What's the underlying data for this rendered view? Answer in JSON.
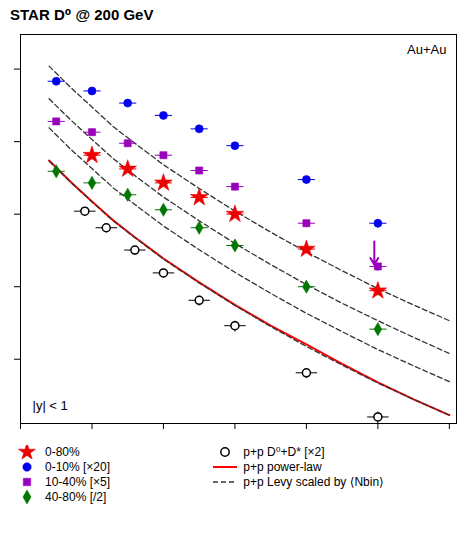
{
  "chart_data": {
    "type": "scatter",
    "title": "STAR D⁰ @ 200 GeV",
    "log": "y",
    "grid": false,
    "tick_labels": false,
    "legend": "bottom",
    "xlim": [
      0,
      6.1
    ],
    "xticks": [
      0,
      1,
      2,
      3,
      4,
      5,
      6
    ],
    "ylim": [
      0.0013,
      300
    ],
    "yticks": [
      0.01,
      0.1,
      1,
      10,
      100
    ],
    "annotations": [
      {
        "text": "Au+Au"
      },
      {
        "text": "|y| < 1"
      },
      {
        "type": "arrow",
        "x": 4.95,
        "y_start": 0.42,
        "y_end": 0.2,
        "color": "#9900bb"
      }
    ],
    "series": [
      {
        "name": "0-80%",
        "type": "scatter",
        "color": "#ee0000",
        "marker": "star",
        "x": [
          1.0,
          1.5,
          2.0,
          2.5,
          3.0,
          4.0,
          5.0
        ],
        "values": [
          6.5,
          4.2,
          2.7,
          1.7,
          1.0,
          0.33,
          0.088
        ],
        "yerr": [
          0.7,
          0.4,
          0.25,
          0.18,
          0.1,
          0.04,
          0.012
        ],
        "xerr": [
          0.12,
          0.12,
          0.12,
          0.12,
          0.12,
          0.12,
          0.12
        ]
      },
      {
        "name": "0-10% [×20]",
        "type": "scatter",
        "color": "#0000ee",
        "marker": "circle",
        "x": [
          0.5,
          1.0,
          1.5,
          2.0,
          2.5,
          3.0,
          4.0,
          5.0
        ],
        "values": [
          68,
          50,
          34,
          23,
          15,
          8.8,
          3.0,
          0.75
        ],
        "yerr": [
          8,
          5,
          3,
          2.5,
          1.5,
          1.0,
          0.35,
          0.1
        ],
        "xerr": [
          0.12,
          0.12,
          0.12,
          0.12,
          0.12,
          0.12,
          0.12,
          0.12
        ]
      },
      {
        "name": "10-40% [×5]",
        "type": "scatter",
        "color": "#9900bb",
        "marker": "square",
        "x": [
          0.5,
          1.0,
          1.5,
          2.0,
          2.5,
          3.0,
          4.0,
          5.0
        ],
        "values": [
          19,
          13.5,
          9.5,
          6.5,
          4.0,
          2.4,
          0.75,
          0.19
        ],
        "yerr": [
          2,
          1.5,
          1.0,
          0.7,
          0.45,
          0.28,
          0.09,
          0.025
        ],
        "xerr": [
          0.12,
          0.12,
          0.12,
          0.12,
          0.12,
          0.12,
          0.12,
          0.12
        ]
      },
      {
        "name": "40-80% [/2]",
        "type": "scatter",
        "color": "#007700",
        "marker": "diamond",
        "x": [
          0.5,
          1.0,
          1.5,
          2.0,
          2.5,
          3.0,
          4.0,
          5.0
        ],
        "values": [
          3.9,
          2.7,
          1.85,
          1.15,
          0.65,
          0.37,
          0.1,
          0.026
        ],
        "yerr": [
          0.5,
          0.3,
          0.2,
          0.13,
          0.08,
          0.04,
          0.012,
          0.004
        ],
        "xerr": [
          0.12,
          0.12,
          0.12,
          0.12,
          0.12,
          0.12,
          0.12,
          0.12
        ]
      },
      {
        "name": "p+p D⁰+D* [×2]",
        "type": "scatter",
        "color": "#000000",
        "marker": "open circle",
        "x": [
          0.9,
          1.2,
          1.6,
          2.0,
          2.5,
          3.0,
          4.0,
          5.0
        ],
        "values": [
          1.1,
          0.65,
          0.32,
          0.155,
          0.065,
          0.029,
          0.0065,
          0.0016
        ],
        "yerr": [
          0.15,
          0.09,
          0.045,
          0.022,
          0.01,
          0.005,
          0.001,
          0.0003
        ],
        "xerr": [
          0.15,
          0.15,
          0.15,
          0.15,
          0.15,
          0.15,
          0.15,
          0.15
        ]
      },
      {
        "name": "p+p power-law",
        "type": "line",
        "color": "red",
        "line_style": "solid",
        "curves": [
          {
            "x": [
              0.4,
              0.7,
              1.0,
              1.3,
              1.6,
              2.0,
              2.5,
              3.0,
              3.5,
              4.0,
              4.5,
              5.0,
              5.5,
              6.0
            ],
            "values": [
              5.5,
              2.8,
              1.5,
              0.82,
              0.48,
              0.245,
              0.115,
              0.056,
              0.029,
              0.016,
              0.0086,
              0.0048,
              0.0028,
              0.0017
            ]
          }
        ]
      },
      {
        "name": "p+p Levy scaled by ⟨Nbin⟩",
        "type": "line",
        "color": "#333333",
        "line_style": "dashed",
        "curves": [
          {
            "x": [
              0.4,
              0.7,
              1.0,
              1.3,
              1.6,
              2.0,
              2.5,
              3.0,
              3.5,
              4.0,
              4.5,
              5.0,
              5.5,
              6.0
            ],
            "values": [
              110,
              56,
              30,
              16,
              9.5,
              4.8,
              2.26,
              1.1,
              0.565,
              0.3,
              0.166,
              0.094,
              0.056,
              0.034
            ]
          },
          {
            "x": [
              0.4,
              0.7,
              1.0,
              1.3,
              1.6,
              2.0,
              2.5,
              3.0,
              3.5,
              4.0,
              4.5,
              5.0,
              5.5,
              6.0
            ],
            "values": [
              39,
              20,
              10.7,
              5.8,
              3.4,
              1.72,
              0.81,
              0.395,
              0.202,
              0.107,
              0.059,
              0.034,
              0.02,
              0.012
            ]
          },
          {
            "x": [
              0.4,
              0.7,
              1.0,
              1.3,
              1.6,
              2.0,
              2.5,
              3.0,
              3.5,
              4.0,
              4.5,
              5.0,
              5.5,
              6.0
            ],
            "values": [
              15.5,
              7.9,
              4.25,
              2.3,
              1.36,
              0.687,
              0.323,
              0.158,
              0.081,
              0.043,
              0.024,
              0.0136,
              0.0081,
              0.0049
            ]
          },
          {
            "x": [
              0.4,
              0.7,
              1.0,
              1.3,
              1.6,
              2.0,
              2.5,
              3.0,
              3.5,
              4.0,
              4.5,
              5.0,
              5.5,
              6.0
            ],
            "values": [
              5.4,
              2.76,
              1.48,
              0.805,
              0.475,
              0.24,
              0.113,
              0.0552,
              0.0283,
              0.015,
              0.0083,
              0.0047,
              0.0028,
              0.0017
            ]
          }
        ]
      }
    ]
  }
}
